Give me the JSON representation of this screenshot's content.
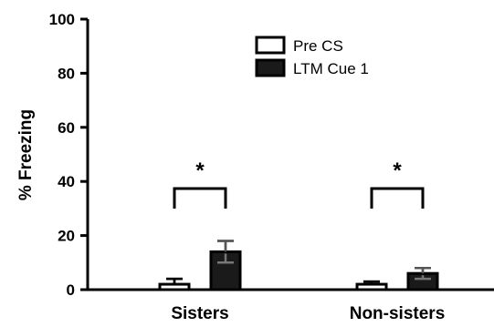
{
  "chart_data": {
    "type": "bar",
    "title": "",
    "xlabel": "",
    "ylabel": "% Freezing",
    "ylim": [
      0,
      100
    ],
    "yticks": [
      0,
      20,
      40,
      60,
      80,
      100
    ],
    "ytick_labels": [
      "0",
      "20",
      "40",
      "60",
      "80",
      "100"
    ],
    "grid": false,
    "legend_position": "top-right",
    "categories": [
      "Sisters",
      "Non-sisters"
    ],
    "series": [
      {
        "name": "Pre CS",
        "values": [
          2,
          2
        ],
        "errors": [
          2,
          1
        ],
        "color": "#ffffff"
      },
      {
        "name": "LTM Cue 1",
        "values": [
          14,
          6
        ],
        "errors": [
          4,
          2
        ],
        "color": "#1a1a1a"
      }
    ],
    "annotations": [
      {
        "text": "*",
        "category": "Sisters"
      },
      {
        "text": "*",
        "category": "Non-sisters"
      }
    ]
  }
}
